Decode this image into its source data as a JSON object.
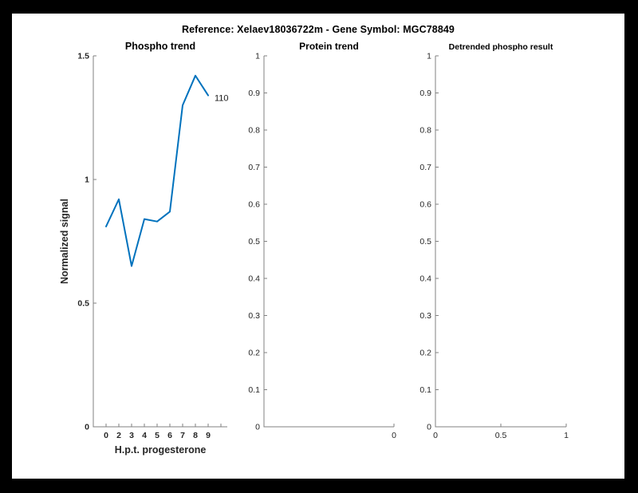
{
  "figure_title": "Reference:  Xelaev18036722m - Gene Symbol:  MGC78849",
  "colors": {
    "line": "#0072BD",
    "axis": "#808080",
    "tick_label": "#262626",
    "title_text": "#000000",
    "frame": "#000000",
    "canvas": "#ffffff"
  },
  "chart_data": [
    {
      "type": "line",
      "title": "Phospho trend",
      "xlabel": "H.p.t. progesterone",
      "ylabel": "Normalized signal",
      "xlim": [
        0,
        10.5
      ],
      "ylim": [
        0,
        1.5
      ],
      "x_ticks": [
        1,
        2,
        3,
        4,
        5,
        6,
        7,
        8,
        9,
        10
      ],
      "x_tick_labels": [
        "0",
        "2",
        "3",
        "4",
        "5",
        "6",
        "7",
        "8",
        "9",
        ""
      ],
      "y_ticks": [
        0,
        0.5,
        1,
        1.5
      ],
      "y_tick_labels": [
        "0",
        "0.5",
        "1",
        "1.5"
      ],
      "x": [
        1,
        2,
        3,
        4,
        5,
        6,
        7,
        8,
        9
      ],
      "values": [
        0.81,
        0.92,
        0.65,
        0.84,
        0.83,
        0.87,
        1.3,
        1.42,
        1.34
      ],
      "end_label": "110",
      "grid": false,
      "legend": null
    },
    {
      "type": "line",
      "title": "Protein trend",
      "xlabel": "",
      "ylabel": "",
      "xlim": [
        0,
        1
      ],
      "ylim": [
        0,
        1
      ],
      "x_ticks": [
        1
      ],
      "x_tick_labels": [
        "0"
      ],
      "y_ticks": [
        0,
        0.1,
        0.2,
        0.3,
        0.4,
        0.5,
        0.6,
        0.7,
        0.8,
        0.9,
        1
      ],
      "y_tick_labels": [
        "0",
        "0.1",
        "0.2",
        "0.3",
        "0.4",
        "0.5",
        "0.6",
        "0.7",
        "0.8",
        "0.9",
        "1"
      ],
      "x": [],
      "values": [],
      "end_label": "",
      "grid": false,
      "legend": null
    },
    {
      "type": "line",
      "title": "Detrended phospho result",
      "xlabel": "",
      "ylabel": "",
      "xlim": [
        0,
        1
      ],
      "ylim": [
        0,
        1
      ],
      "x_ticks": [
        0,
        0.5,
        1
      ],
      "x_tick_labels": [
        "0",
        "0.5",
        "1"
      ],
      "y_ticks": [
        0,
        0.1,
        0.2,
        0.3,
        0.4,
        0.5,
        0.6,
        0.7,
        0.8,
        0.9,
        1
      ],
      "y_tick_labels": [
        "0",
        "0.1",
        "0.2",
        "0.3",
        "0.4",
        "0.5",
        "0.6",
        "0.7",
        "0.8",
        "0.9",
        "1"
      ],
      "x": [],
      "values": [],
      "end_label": "",
      "grid": false,
      "legend": null
    }
  ]
}
